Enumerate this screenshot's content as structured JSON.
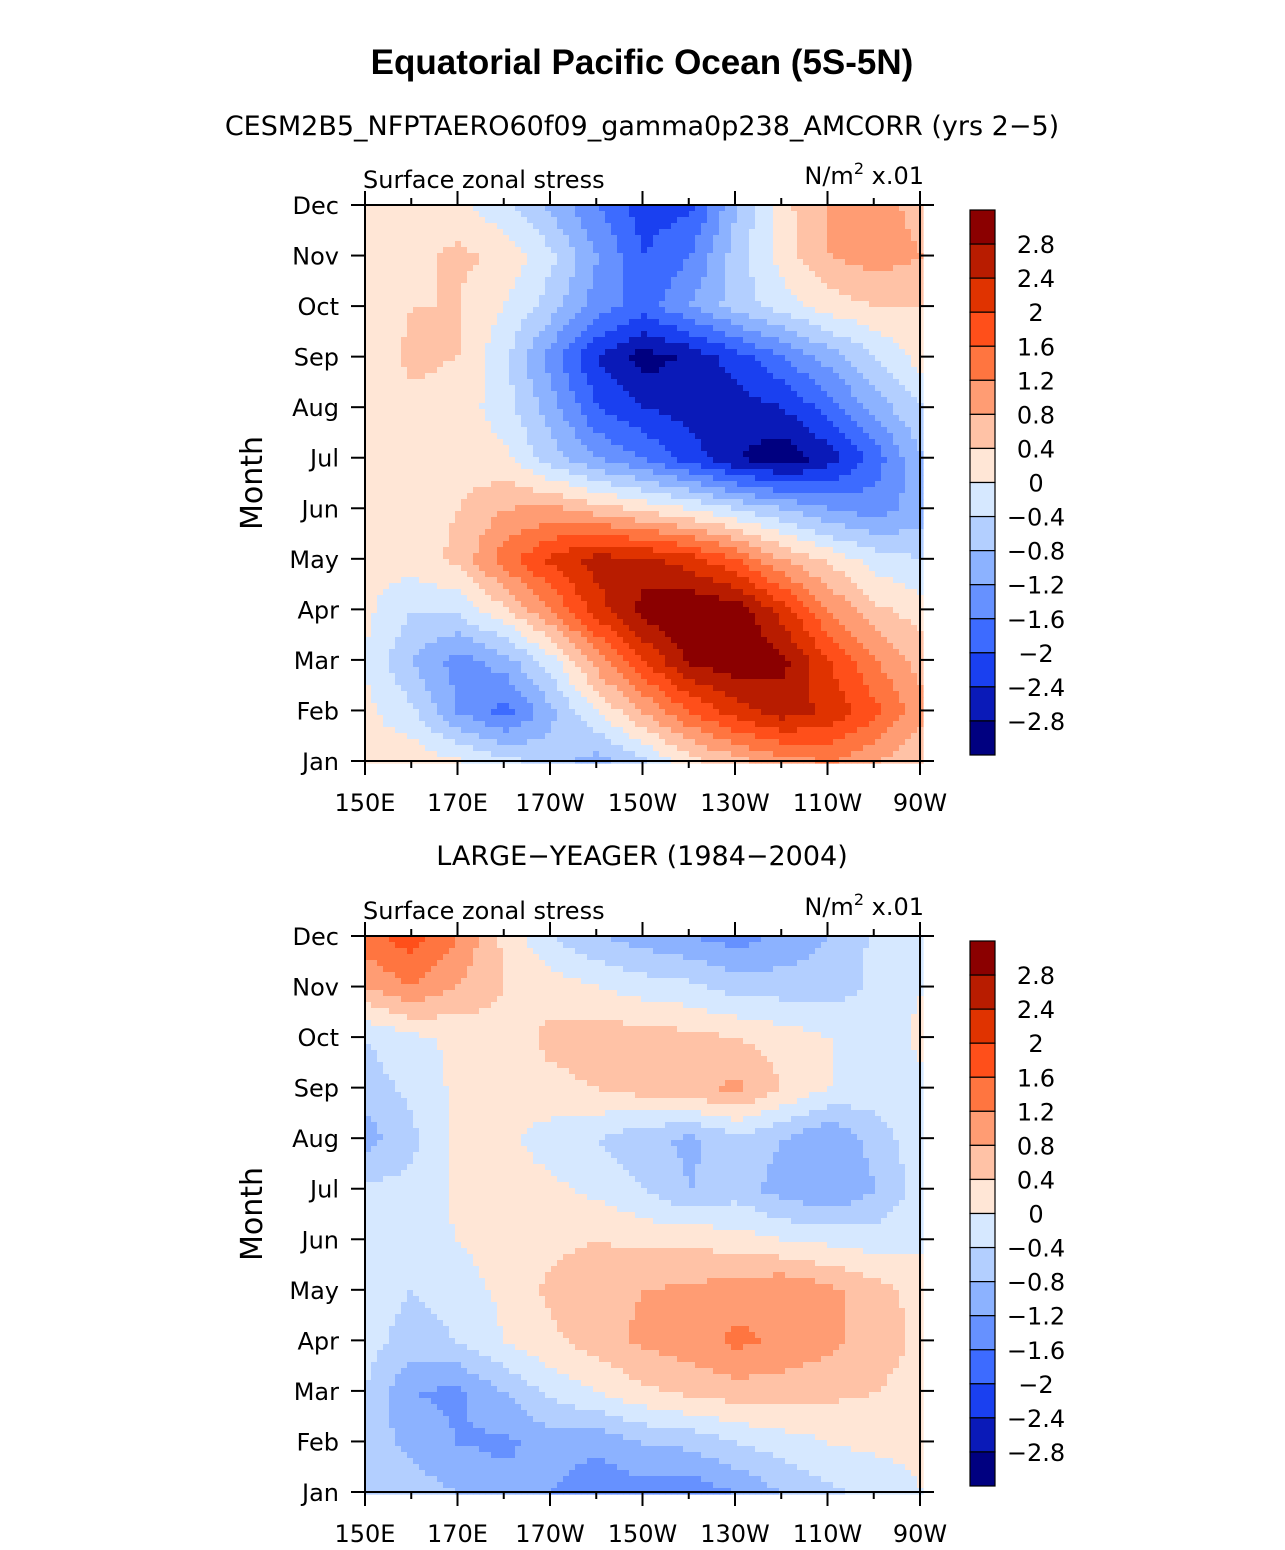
{
  "figure": {
    "title": "Equatorial Pacific Ocean (5S-5N)"
  },
  "colorbar": {
    "levels": [
      "2.8",
      "2.4",
      "2",
      "1.6",
      "1.2",
      "0.8",
      "0.4",
      "0",
      "−0.4",
      "−0.8",
      "−1.2",
      "−1.6",
      "−2",
      "−2.4",
      "−2.8"
    ],
    "colors": [
      "#8b0000",
      "#b81c00",
      "#e03300",
      "#ff4f1a",
      "#ff7540",
      "#ff9c73",
      "#ffc2a6",
      "#ffe6d6",
      "#d6e8ff",
      "#b3cfff",
      "#8cb2ff",
      "#6691ff",
      "#3d6bff",
      "#1a40f0",
      "#0a1ab8",
      "#000080"
    ]
  },
  "chart_data": [
    {
      "type": "heatmap",
      "title": "CESM2B5_NFPTAERO60f09_gamma0p238_AMCORR (yrs 2−5)",
      "left_label": "Surface zonal stress",
      "right_label": "N/m",
      "right_label_sup": "2",
      "right_label_tail": " x.01",
      "ylabel": "Month",
      "x_ticks": [
        "150E",
        "170E",
        "170W",
        "150W",
        "130W",
        "110W",
        "90W"
      ],
      "y_ticks": [
        "Jan",
        "Feb",
        "Mar",
        "Apr",
        "May",
        "Jun",
        "Jul",
        "Aug",
        "Sep",
        "Oct",
        "Nov",
        "Dec"
      ],
      "x_range": [
        "150E",
        "90W"
      ],
      "x_lon": [
        150,
        160,
        170,
        180,
        190,
        200,
        210,
        220,
        230,
        240,
        250,
        260,
        270
      ],
      "grid": [
        [
          0.2,
          0.3,
          0.1,
          -0.2,
          -0.6,
          -1.0,
          -0.5,
          0.2,
          0.6,
          1.0,
          1.2,
          0.8,
          0.4
        ],
        [
          0.1,
          -0.3,
          -1.2,
          -1.8,
          -0.9,
          0.0,
          0.8,
          1.6,
          2.2,
          2.6,
          2.3,
          1.7,
          0.9
        ],
        [
          0.0,
          -0.8,
          -1.4,
          -1.0,
          -0.2,
          1.0,
          2.0,
          2.9,
          3.1,
          2.9,
          2.0,
          1.2,
          0.6
        ],
        [
          0.1,
          -0.4,
          -0.3,
          0.3,
          1.2,
          2.2,
          3.0,
          3.2,
          3.1,
          2.2,
          1.2,
          0.5,
          0.2
        ],
        [
          0.1,
          0.2,
          0.5,
          1.4,
          2.1,
          2.6,
          2.5,
          2.2,
          1.6,
          0.8,
          0.3,
          -0.2,
          -0.4
        ],
        [
          0.2,
          0.2,
          0.4,
          0.8,
          0.9,
          0.6,
          0.3,
          0.0,
          -0.4,
          -0.8,
          -1.2,
          -1.4,
          -1.0
        ],
        [
          0.2,
          0.3,
          0.2,
          0.1,
          -0.6,
          -1.2,
          -1.6,
          -2.2,
          -2.8,
          -3.1,
          -2.6,
          -1.8,
          -0.8
        ],
        [
          0.2,
          0.3,
          0.2,
          -0.2,
          -1.0,
          -2.0,
          -2.4,
          -2.6,
          -2.6,
          -2.4,
          -1.8,
          -1.0,
          -0.4
        ],
        [
          0.1,
          0.5,
          0.4,
          -0.3,
          -1.4,
          -2.4,
          -3.0,
          -2.7,
          -2.2,
          -1.6,
          -1.0,
          -0.4,
          0.2
        ],
        [
          0.0,
          0.4,
          0.4,
          0.0,
          -0.6,
          -1.4,
          -1.8,
          -1.2,
          -0.6,
          -0.2,
          0.2,
          0.4,
          0.4
        ],
        [
          0.2,
          0.3,
          0.5,
          0.3,
          -0.3,
          -1.2,
          -2.0,
          -1.6,
          -0.6,
          0.2,
          0.8,
          1.0,
          0.8
        ],
        [
          0.3,
          0.2,
          0.1,
          -0.3,
          -0.9,
          -1.6,
          -2.2,
          -2.1,
          -0.8,
          0.3,
          0.8,
          1.0,
          0.6
        ]
      ]
    },
    {
      "type": "heatmap",
      "title": "LARGE−YEAGER (1984−2004)",
      "left_label": "Surface zonal stress",
      "right_label": "N/m",
      "right_label_sup": "2",
      "right_label_tail": " x.01",
      "ylabel": "Month",
      "x_ticks": [
        "150E",
        "170E",
        "170W",
        "150W",
        "130W",
        "110W",
        "90W"
      ],
      "y_ticks": [
        "Jan",
        "Feb",
        "Mar",
        "Apr",
        "May",
        "Jun",
        "Jul",
        "Aug",
        "Sep",
        "Oct",
        "Nov",
        "Dec"
      ],
      "x_range": [
        "150E",
        "90W"
      ],
      "x_lon": [
        150,
        160,
        170,
        180,
        190,
        200,
        210,
        220,
        230,
        240,
        250,
        260,
        270
      ],
      "grid": [
        [
          -0.4,
          -0.6,
          -0.8,
          -1.0,
          -1.2,
          -1.5,
          -1.4,
          -1.5,
          -1.2,
          -0.8,
          -0.5,
          -0.3,
          0.0
        ],
        [
          -0.6,
          -0.9,
          -1.2,
          -1.3,
          -1.0,
          -1.1,
          -0.8,
          -0.7,
          -0.4,
          -0.2,
          0.0,
          0.1,
          0.1
        ],
        [
          -0.4,
          -1.2,
          -1.3,
          -0.8,
          -0.3,
          0.0,
          0.3,
          0.5,
          0.6,
          0.6,
          0.5,
          0.4,
          0.2
        ],
        [
          -0.2,
          -0.6,
          -0.4,
          0.0,
          0.3,
          0.6,
          0.9,
          1.0,
          1.3,
          1.1,
          0.9,
          0.6,
          0.3
        ],
        [
          -0.2,
          -0.4,
          -0.2,
          0.1,
          0.5,
          0.7,
          0.8,
          0.9,
          1.0,
          1.2,
          0.9,
          0.6,
          0.2
        ],
        [
          -0.1,
          -0.2,
          0.0,
          0.2,
          0.3,
          0.4,
          0.3,
          0.3,
          0.2,
          0.0,
          -0.1,
          -0.2,
          -0.1
        ],
        [
          -0.3,
          -0.3,
          0.1,
          0.2,
          0.1,
          -0.1,
          -0.4,
          -0.8,
          -0.6,
          -1.0,
          -1.2,
          -0.8,
          -0.2
        ],
        [
          -1.0,
          -0.5,
          0.1,
          0.1,
          -0.2,
          -0.4,
          -0.7,
          -0.9,
          -0.5,
          -0.8,
          -1.2,
          -0.6,
          -0.1
        ],
        [
          -0.6,
          -0.3,
          0.1,
          0.2,
          0.3,
          0.4,
          0.6,
          0.7,
          0.9,
          0.4,
          0.0,
          -0.2,
          -0.1
        ],
        [
          -0.4,
          -0.1,
          0.1,
          0.2,
          0.5,
          0.6,
          0.6,
          0.5,
          0.4,
          0.2,
          0.0,
          -0.2,
          0.1
        ],
        [
          0.8,
          1.2,
          0.8,
          0.4,
          0.2,
          0.0,
          -0.2,
          -0.3,
          -0.6,
          -0.6,
          -0.6,
          -0.3,
          0.0
        ],
        [
          1.5,
          1.8,
          1.2,
          0.3,
          -0.4,
          -0.8,
          -1.0,
          -1.2,
          -1.4,
          -1.1,
          -0.8,
          -0.3,
          0.0
        ]
      ]
    }
  ]
}
